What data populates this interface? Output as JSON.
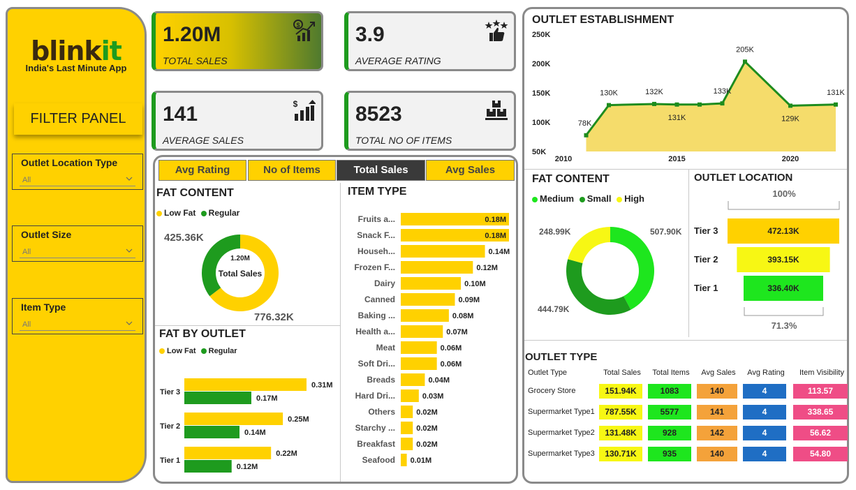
{
  "brand": {
    "name_prefix": "blink",
    "name_suffix": "it",
    "tagline": "India's Last Minute App"
  },
  "filter_panel": {
    "title": "FILTER PANEL",
    "slicers": [
      {
        "label": "Outlet Location Type",
        "value": "All"
      },
      {
        "label": "Outlet Size",
        "value": "All"
      },
      {
        "label": "Item Type",
        "value": "All"
      }
    ]
  },
  "kpis": [
    {
      "value": "1.20M",
      "caption": "TOTAL SALES",
      "icon": "sales-growth-icon"
    },
    {
      "value": "3.9",
      "caption": "AVERAGE RATING",
      "icon": "thumbs-up-stars-icon"
    },
    {
      "value": "141",
      "caption": "AVERAGE SALES",
      "icon": "dollar-bar-growth-icon"
    },
    {
      "value": "8523",
      "caption": "TOTAL NO OF ITEMS",
      "icon": "boxes-icon"
    }
  ],
  "tabs": [
    {
      "label": "Avg Rating",
      "active": false
    },
    {
      "label": "No of Items",
      "active": false
    },
    {
      "label": "Total Sales",
      "active": true
    },
    {
      "label": "Avg Sales",
      "active": false
    }
  ],
  "colors": {
    "yellow": "#ffd100",
    "green": "#1e9b1e",
    "bright_green": "#1ee61e",
    "light_yellow": "#f7f714",
    "orange": "#f4a23a",
    "blue": "#1f6ec4",
    "pink": "#ef4d86",
    "area_fill": "#f5dc6b"
  },
  "fat_content_donut": {
    "title": "FAT CONTENT",
    "legend": [
      "Low Fat",
      "Regular"
    ],
    "center_value": "1.20M",
    "center_label": "Total Sales",
    "label_regular": "425.36K",
    "label_low_fat": "776.32K",
    "chart_data": {
      "type": "pie",
      "categories": [
        "Low Fat",
        "Regular"
      ],
      "values": [
        776.32,
        425.36
      ]
    }
  },
  "fat_by_outlet": {
    "title": "FAT BY OUTLET",
    "legend": [
      "Low Fat",
      "Regular"
    ],
    "chart_data": {
      "type": "bar",
      "categories": [
        "Tier 3",
        "Tier 2",
        "Tier 1"
      ],
      "series": [
        {
          "name": "Low Fat",
          "values": [
            0.31,
            0.25,
            0.22
          ],
          "labels": [
            "0.31M",
            "0.25M",
            "0.22M"
          ]
        },
        {
          "name": "Regular",
          "values": [
            0.17,
            0.14,
            0.12
          ],
          "labels": [
            "0.17M",
            "0.14M",
            "0.12M"
          ]
        }
      ]
    }
  },
  "item_type": {
    "title": "ITEM TYPE",
    "chart_data": {
      "type": "bar",
      "categories": [
        "Fruits a...",
        "Snack F...",
        "Househ...",
        "Frozen F...",
        "Dairy",
        "Canned",
        "Baking ...",
        "Health a...",
        "Meat",
        "Soft Dri...",
        "Breads",
        "Hard Dri...",
        "Others",
        "Starchy ...",
        "Breakfast",
        "Seafood"
      ],
      "values": [
        0.18,
        0.18,
        0.14,
        0.12,
        0.1,
        0.09,
        0.08,
        0.07,
        0.06,
        0.06,
        0.04,
        0.03,
        0.02,
        0.02,
        0.02,
        0.01
      ],
      "labels": [
        "0.18M",
        "0.18M",
        "0.14M",
        "0.12M",
        "0.10M",
        "0.09M",
        "0.08M",
        "0.07M",
        "0.06M",
        "0.06M",
        "0.04M",
        "0.03M",
        "0.02M",
        "0.02M",
        "0.02M",
        "0.01M"
      ]
    }
  },
  "outlet_establishment": {
    "title": "OUTLET ESTABLISHMENT",
    "chart_data": {
      "type": "area",
      "x": [
        2011,
        2012,
        2014,
        2015,
        2016,
        2017,
        2018,
        2020,
        2022
      ],
      "values": [
        78,
        130,
        132,
        131,
        131,
        133,
        205,
        129,
        131
      ],
      "labels": [
        "78K",
        "130K",
        "132K",
        "131K",
        "",
        "133K",
        "205K",
        "129K",
        "131K"
      ],
      "y_ticks": [
        "250K",
        "200K",
        "150K",
        "100K",
        "50K"
      ],
      "x_ticks": [
        "2010",
        "2015",
        "2020"
      ],
      "ylim": [
        50,
        250
      ],
      "xlim": [
        2010,
        2022
      ]
    }
  },
  "fat_content_outlet": {
    "title": "FAT CONTENT",
    "legend": [
      "Medium",
      "Small",
      "High"
    ],
    "chart_data": {
      "type": "pie",
      "categories": [
        "Medium",
        "Small",
        "High"
      ],
      "values": [
        507.9,
        444.79,
        248.99
      ],
      "labels": [
        "507.90K",
        "444.79K",
        "248.99K"
      ]
    }
  },
  "outlet_location": {
    "title": "OUTLET LOCATION",
    "top_pct": "100%",
    "bottom_pct": "71.3%",
    "chart_data": {
      "type": "bar",
      "categories": [
        "Tier 3",
        "Tier 2",
        "Tier 1"
      ],
      "values": [
        472.13,
        393.15,
        336.4
      ],
      "labels": [
        "472.13K",
        "393.15K",
        "336.40K"
      ]
    }
  },
  "outlet_type": {
    "title": "OUTLET TYPE",
    "columns": [
      "Outlet Type",
      "Total Sales",
      "Total Items",
      "Avg Sales",
      "Avg Rating",
      "Item Visibility"
    ],
    "rows": [
      [
        "Grocery Store",
        "151.94K",
        "1083",
        "140",
        "4",
        "113.57"
      ],
      [
        "Supermarket Type1",
        "787.55K",
        "5577",
        "141",
        "4",
        "338.65"
      ],
      [
        "Supermarket Type2",
        "131.48K",
        "928",
        "142",
        "4",
        "56.62"
      ],
      [
        "Supermarket Type3",
        "130.71K",
        "935",
        "140",
        "4",
        "54.80"
      ]
    ]
  }
}
